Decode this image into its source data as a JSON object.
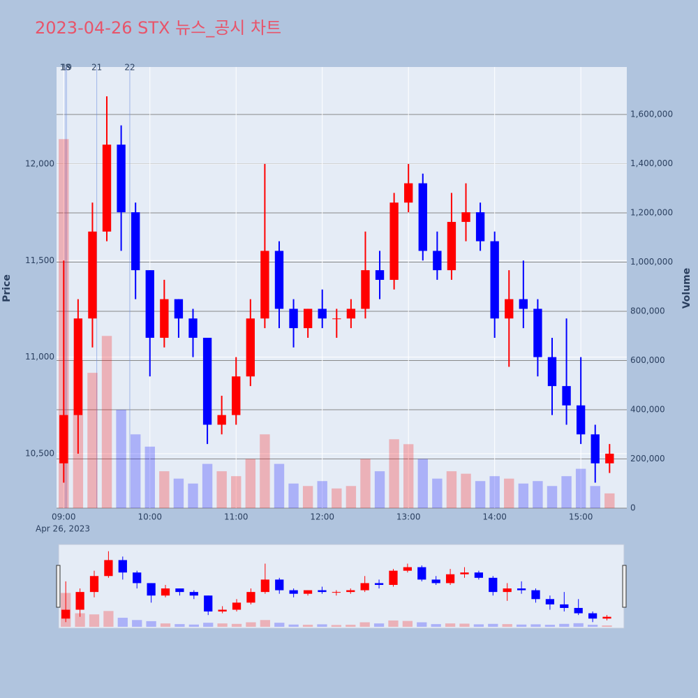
{
  "chart_data": {
    "type": "candlestick",
    "title": "2023-04-26 STX 뉴스_공시 차트",
    "y_label": "Price",
    "y2_label": "Volume",
    "x_date_label": "Apr 26, 2023",
    "x": [
      "09:00",
      "09:10",
      "09:20",
      "09:30",
      "09:40",
      "09:50",
      "10:00",
      "10:10",
      "10:20",
      "10:30",
      "10:40",
      "10:50",
      "11:00",
      "11:10",
      "11:20",
      "11:30",
      "11:40",
      "11:50",
      "12:00",
      "12:10",
      "12:20",
      "12:30",
      "12:40",
      "12:50",
      "13:00",
      "13:10",
      "13:20",
      "13:30",
      "13:40",
      "13:50",
      "14:00",
      "14:10",
      "14:20",
      "14:30",
      "14:40",
      "14:50",
      "15:00",
      "15:10",
      "15:20"
    ],
    "open": [
      10450,
      10700,
      11200,
      11650,
      12100,
      11750,
      11450,
      11100,
      11300,
      11200,
      11100,
      10650,
      10700,
      10900,
      11200,
      11550,
      11250,
      11150,
      11250,
      11200,
      11200,
      11250,
      11450,
      11400,
      11800,
      11900,
      11550,
      11450,
      11700,
      11750,
      11600,
      11200,
      11300,
      11250,
      11000,
      10850,
      10750,
      10600,
      10450
    ],
    "high": [
      11500,
      11300,
      11800,
      12350,
      12200,
      11800,
      11450,
      11400,
      11300,
      11250,
      11100,
      10800,
      11000,
      11300,
      12000,
      11600,
      11300,
      11250,
      11350,
      11250,
      11300,
      11650,
      11550,
      11850,
      12000,
      11950,
      11650,
      11850,
      11900,
      11800,
      11650,
      11450,
      11500,
      11300,
      11100,
      11200,
      11000,
      10650,
      10550
    ],
    "low": [
      10350,
      10500,
      11050,
      11600,
      11550,
      11300,
      10900,
      11050,
      11100,
      11000,
      10550,
      10600,
      10650,
      10850,
      11150,
      11150,
      11050,
      11100,
      11150,
      11100,
      11150,
      11200,
      11300,
      11350,
      11750,
      11500,
      11400,
      11400,
      11600,
      11550,
      11100,
      10950,
      11150,
      10900,
      10700,
      10650,
      10550,
      10350,
      10400
    ],
    "close": [
      10700,
      11200,
      11650,
      12100,
      11750,
      11450,
      11100,
      11300,
      11200,
      11100,
      10650,
      10700,
      10900,
      11200,
      11550,
      11250,
      11150,
      11250,
      11200,
      11200,
      11250,
      11450,
      11400,
      11800,
      11900,
      11550,
      11450,
      11700,
      11750,
      11600,
      11200,
      11300,
      11250,
      11000,
      10850,
      10750,
      10600,
      10450,
      10500
    ],
    "volume": [
      1500000,
      600000,
      550000,
      700000,
      400000,
      300000,
      250000,
      150000,
      120000,
      100000,
      180000,
      150000,
      130000,
      200000,
      300000,
      180000,
      100000,
      90000,
      110000,
      80000,
      90000,
      200000,
      150000,
      280000,
      260000,
      200000,
      120000,
      150000,
      140000,
      110000,
      130000,
      120000,
      100000,
      110000,
      90000,
      130000,
      160000,
      90000,
      60000
    ],
    "increasing_color": "#ff0000",
    "decreasing_color": "#0000ff",
    "xlim": [
      "08:55",
      "15:32"
    ],
    "xticks": [
      "09:00",
      "10:00",
      "11:00",
      "12:00",
      "13:00",
      "14:00",
      "15:00"
    ],
    "ylim": [
      10218,
      12502
    ],
    "yticks": [
      {
        "value": 10500,
        "label": "10,500"
      },
      {
        "value": 11000,
        "label": "11,000"
      },
      {
        "value": 11500,
        "label": "11,500"
      },
      {
        "value": 12000,
        "label": "12,000"
      }
    ],
    "y2lim": [
      0,
      1793000
    ],
    "y2ticks": [
      0,
      {
        "value": 200000,
        "label": "200,000"
      },
      {
        "value": 400000,
        "label": "400,000"
      },
      {
        "value": 600000,
        "label": "600,000"
      },
      {
        "value": 800000,
        "label": "800,000"
      },
      {
        "value": 1000000,
        "label": "1,000,000"
      },
      {
        "value": 1200000,
        "label": "1,200,000"
      },
      {
        "value": 1400000,
        "label": "1,400,000"
      },
      {
        "value": 1600000,
        "label": "1,600,000"
      }
    ],
    "annotations": [
      {
        "label": "18",
        "x": "09:01"
      },
      {
        "label": "19",
        "x": "09:02"
      },
      {
        "label": "21",
        "x": "09:23"
      },
      {
        "label": "22",
        "x": "09:46"
      }
    ],
    "rangeslider": true
  }
}
